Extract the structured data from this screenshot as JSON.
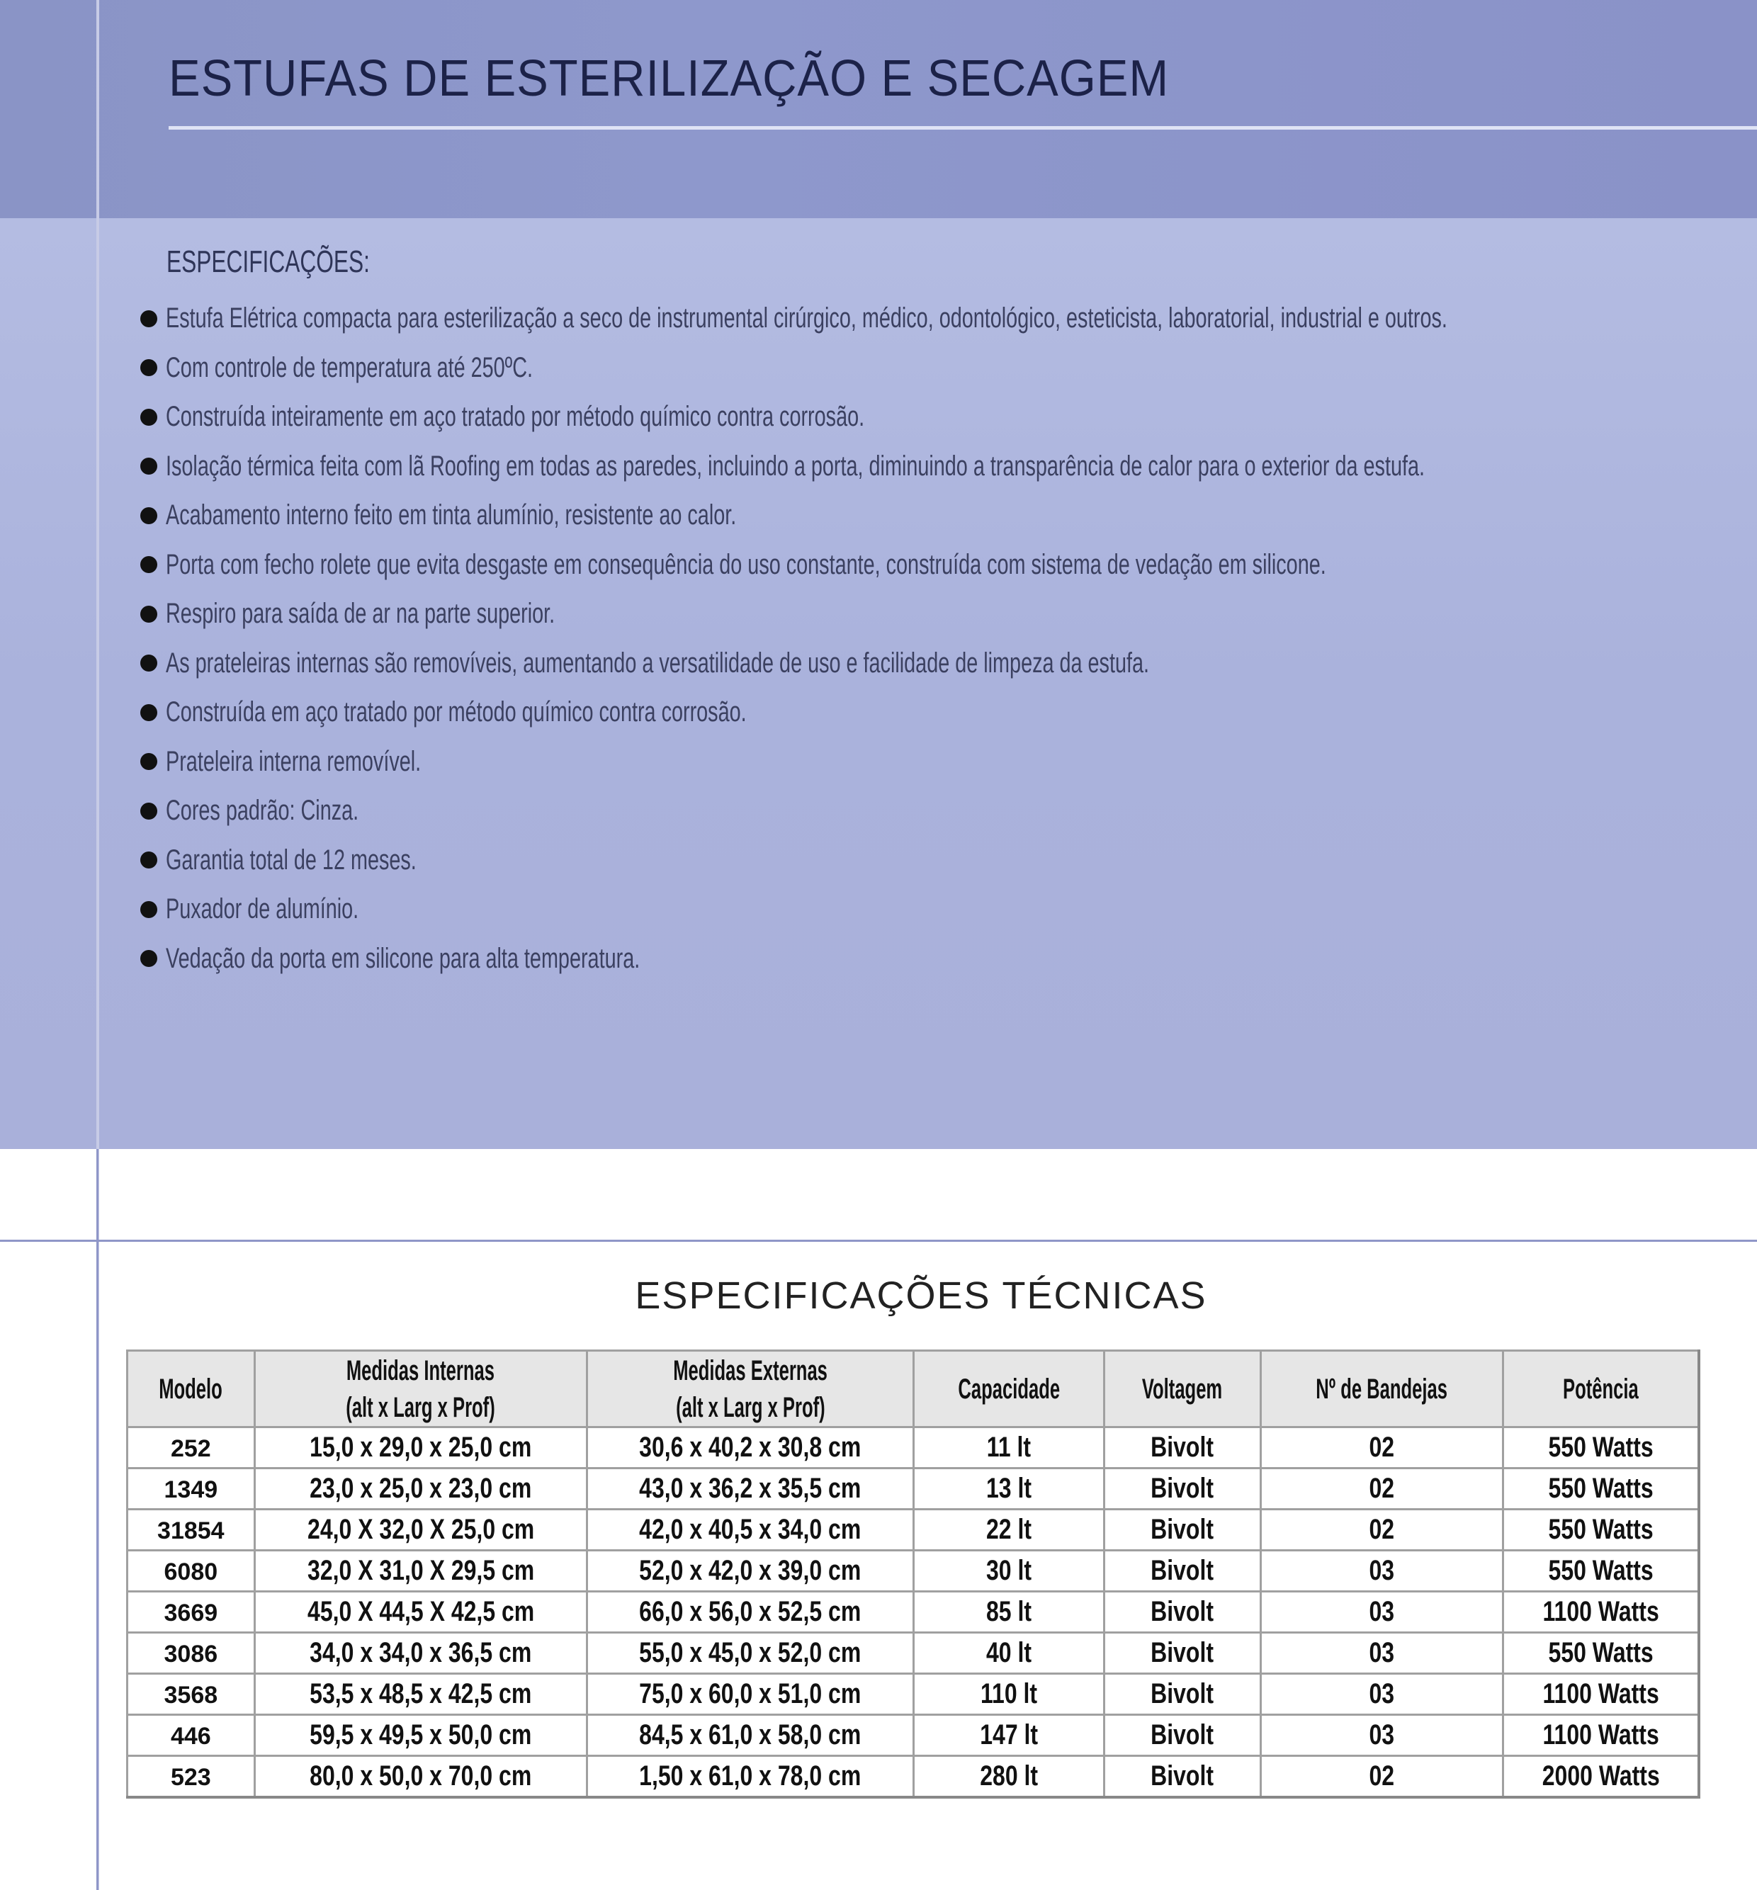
{
  "title": "ESTUFAS DE ESTERILIZAÇÃO E SECAGEM",
  "specs_heading": "ESPECIFICAÇÕES:",
  "specs": [
    "Estufa Elétrica compacta para esterilização a seco de instrumental cirúrgico, médico, odontológico, esteticista, laboratorial, industrial e outros.",
    "Com controle de temperatura até 250ºC.",
    "Construída inteiramente em aço tratado por método químico contra corrosão.",
    "Isolação térmica feita com lã Roofing em todas as paredes, incluindo a porta, diminuindo a transparência de calor para o exterior da estufa.",
    "Acabamento interno feito em tinta alumínio, resistente ao calor.",
    "Porta com fecho rolete que evita desgaste em consequência do uso constante, construída com sistema de vedação em silicone.",
    "Respiro para saída de ar na parte superior.",
    "As prateleiras internas são removíveis, aumentando a versatilidade de uso e facilidade de limpeza da estufa.",
    "Construída em aço tratado por método químico contra corrosão.",
    "Prateleira interna removível.",
    "Cores padrão: Cinza.",
    "Garantia total de 12 meses.",
    "Puxador de alumínio.",
    "Vedação da porta em silicone para alta temperatura."
  ],
  "table_title": "ESPECIFICAÇÕES TÉCNICAS",
  "table": {
    "headers": [
      [
        "Modelo",
        ""
      ],
      [
        "Medidas Internas",
        "(alt x Larg x Prof)"
      ],
      [
        "Medidas Externas",
        "(alt x Larg x Prof)"
      ],
      [
        "Capacidade",
        ""
      ],
      [
        "Voltagem",
        ""
      ],
      [
        "Nº de Bandejas",
        ""
      ],
      [
        "Potência",
        ""
      ]
    ],
    "rows": [
      [
        "252",
        "15,0 x 29,0 x 25,0 cm",
        "30,6 x 40,2 x 30,8 cm",
        "11 lt",
        "Bivolt",
        "02",
        "550 Watts"
      ],
      [
        "1349",
        "23,0 x 25,0 x 23,0 cm",
        "43,0 x 36,2 x 35,5 cm",
        "13 lt",
        "Bivolt",
        "02",
        "550 Watts"
      ],
      [
        "31854",
        "24,0 X 32,0 X 25,0 cm",
        "42,0 x 40,5 x 34,0 cm",
        "22 lt",
        "Bivolt",
        "02",
        "550 Watts"
      ],
      [
        "6080",
        "32,0 X 31,0 X 29,5 cm",
        "52,0 x 42,0 x 39,0 cm",
        "30 lt",
        "Bivolt",
        "03",
        "550 Watts"
      ],
      [
        "3669",
        "45,0 X 44,5 X 42,5 cm",
        "66,0 x 56,0 x 52,5 cm",
        "85 lt",
        "Bivolt",
        "03",
        "1100 Watts"
      ],
      [
        "3086",
        "34,0 x 34,0 x 36,5 cm",
        "55,0 x 45,0 x 52,0 cm",
        "40 lt",
        "Bivolt",
        "03",
        "550 Watts"
      ],
      [
        "3568",
        "53,5 x 48,5 x 42,5 cm",
        "75,0 x 60,0 x 51,0 cm",
        "110 lt",
        "Bivolt",
        "03",
        "1100 Watts"
      ],
      [
        "446",
        "59,5 x 49,5 x 50,0 cm",
        "84,5 x 61,0 x 58,0 cm",
        "147 lt",
        "Bivolt",
        "03",
        "1100 Watts"
      ],
      [
        "523",
        "80,0 x 50,0 x 70,0 cm",
        "1,50 x 61,0 x 78,0 cm",
        "280 lt",
        "Bivolt",
        "02",
        "2000 Watts"
      ]
    ]
  }
}
